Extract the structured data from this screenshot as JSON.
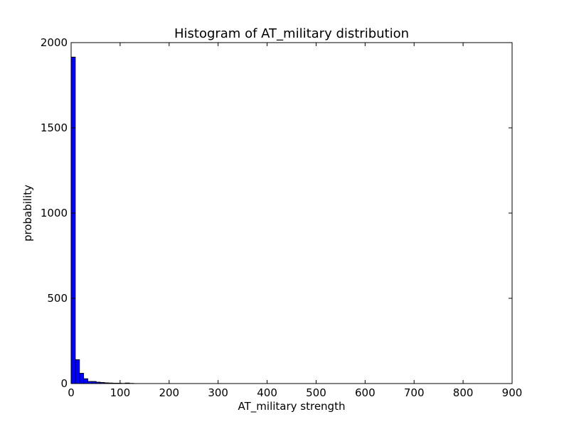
{
  "chart_data": {
    "type": "bar",
    "title": "Histogram of AT_military  distribution",
    "xlabel": "AT_military  strength",
    "ylabel": "probability",
    "xlim": [
      0,
      900
    ],
    "ylim": [
      0,
      2000
    ],
    "xticks": [
      "0",
      "100",
      "200",
      "300",
      "400",
      "500",
      "600",
      "700",
      "800",
      "900"
    ],
    "yticks": [
      "0",
      "500",
      "1000",
      "1500",
      "2000"
    ],
    "bin_width": 8.5,
    "bin_starts": [
      0,
      8.5,
      17,
      25.5,
      34,
      42.5,
      51,
      59.5,
      68,
      76.5,
      85,
      93.5,
      102,
      110.5,
      119
    ],
    "values": [
      1915,
      140,
      60,
      28,
      12,
      12,
      8,
      6,
      4,
      3,
      2,
      2,
      1,
      3,
      1
    ],
    "bar_color": "#0000ff",
    "edge_color": "#000000",
    "grid": false,
    "legend": "none"
  }
}
